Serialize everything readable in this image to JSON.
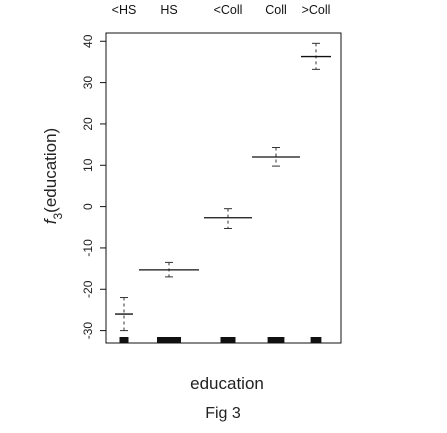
{
  "chart_data": {
    "type": "boxplot",
    "categories": [
      "<HS",
      "HS",
      "<Coll",
      "Coll",
      ">Coll"
    ],
    "xlabel": "education",
    "ylabel_prefix": "f",
    "ylabel_sub": "3",
    "ylabel_suffix": "(education)",
    "ylim": [
      -33,
      42
    ],
    "yticks": [
      -30,
      -20,
      -10,
      0,
      10,
      20,
      30,
      40
    ],
    "series": [
      {
        "values": [
          {
            "estimate": -26,
            "lower": -30,
            "upper": -22,
            "box_width": 0.3
          },
          {
            "estimate": -15.3,
            "lower": -17,
            "upper": -13.5,
            "box_width": 1.0
          },
          {
            "estimate": -2.7,
            "lower": -5.3,
            "upper": -0.5,
            "box_width": 0.8
          },
          {
            "estimate": 12,
            "lower": 9.8,
            "upper": 14.3,
            "box_width": 0.8
          },
          {
            "estimate": 36.3,
            "lower": 33.2,
            "upper": 39.5,
            "box_width": 0.5
          }
        ]
      }
    ],
    "rug_width": [
      0.15,
      0.4,
      0.25,
      0.28,
      0.18
    ],
    "grid": false,
    "legend": "none"
  },
  "caption": "Fig 3"
}
